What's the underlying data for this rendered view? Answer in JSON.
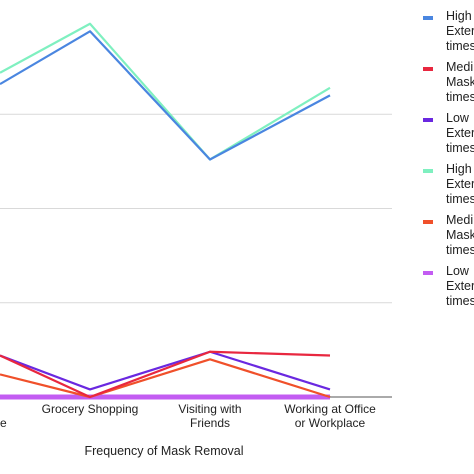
{
  "chart_data": {
    "type": "line",
    "title": "",
    "xlabel": "Frequency of Mask Removal",
    "ylabel": "",
    "categories": [
      [
        "",
        "de"
      ],
      [
        "Grocery Shopping"
      ],
      [
        "Visiting with",
        "Friends"
      ],
      [
        "Working at Office",
        "or Workplace"
      ]
    ],
    "ylim": [
      0,
      100
    ],
    "grid": true,
    "legend_position": "right",
    "series": [
      {
        "name": [
          "High",
          "Exter",
          "times"
        ],
        "color": "#4a86e0",
        "values": [
          83,
          97,
          63,
          80
        ]
      },
      {
        "name": [
          "Medi",
          "Mask",
          "times"
        ],
        "color": "#e8273f",
        "values": [
          11,
          0,
          12,
          11
        ]
      },
      {
        "name": [
          "Low",
          "Exter",
          "times"
        ],
        "color": "#6a28e0",
        "values": [
          11,
          2,
          12,
          2
        ]
      },
      {
        "name": [
          "High",
          "Exter",
          "times"
        ],
        "color": "#7ff0c0",
        "values": [
          86,
          99,
          63,
          82
        ]
      },
      {
        "name": [
          "Medi",
          "Mask",
          "times"
        ],
        "color": "#f0502a",
        "values": [
          6,
          0,
          10,
          0
        ]
      },
      {
        "name": [
          "Low",
          "Exter",
          "times"
        ],
        "color": "#c35cf2",
        "values": [
          0,
          0,
          0,
          0
        ]
      }
    ]
  }
}
